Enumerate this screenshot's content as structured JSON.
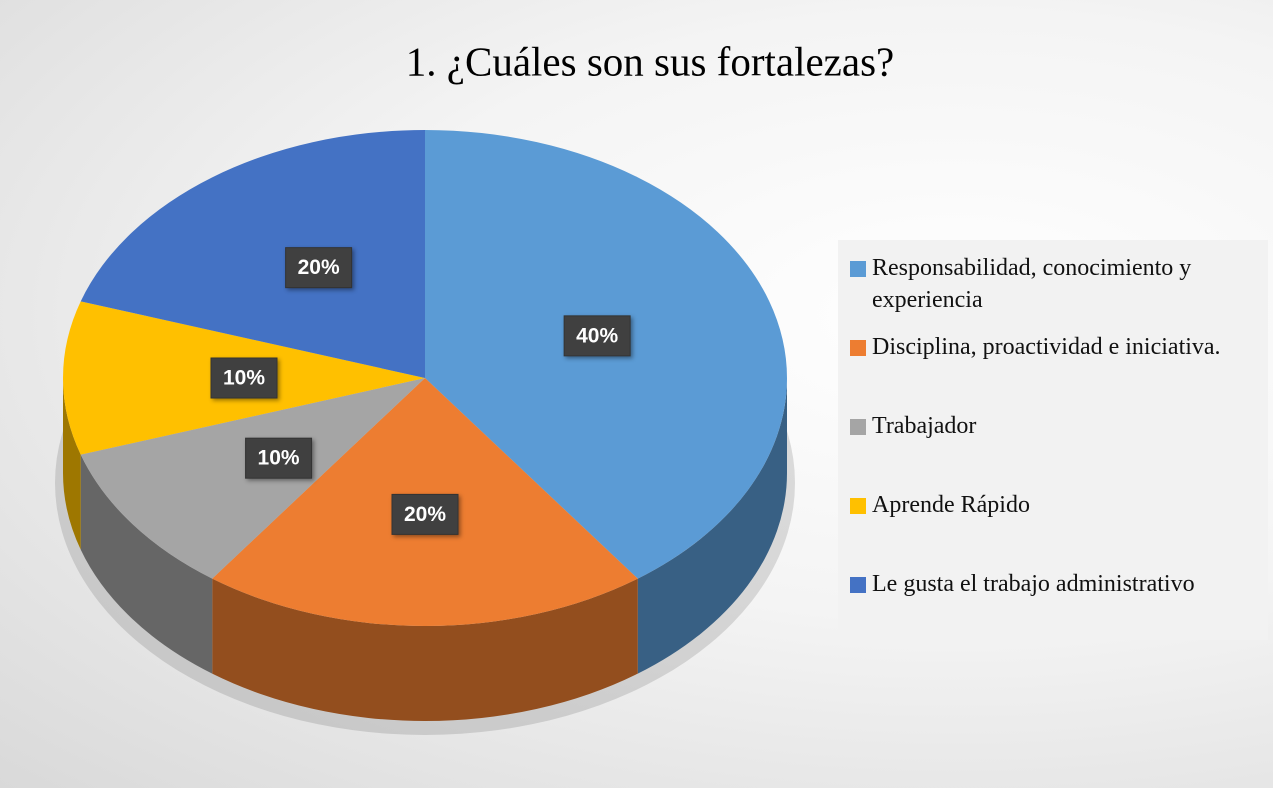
{
  "chart_data": {
    "type": "pie",
    "title": "1. ¿Cuáles son sus fortalezas?",
    "categories": [
      "Responsabilidad, conocimiento y experiencia",
      "Disciplina, proactividad e iniciativa.",
      "Trabajador",
      "Aprende Rápido",
      "Le gusta el trabajo administrativo"
    ],
    "values": [
      40,
      20,
      10,
      10,
      20
    ],
    "value_labels": [
      "40%",
      "20%",
      "10%",
      "10%",
      "20%"
    ],
    "colors": [
      "#5b9bd5",
      "#ed7d31",
      "#a5a5a5",
      "#ffc000",
      "#4472c4"
    ],
    "legend": "right"
  }
}
